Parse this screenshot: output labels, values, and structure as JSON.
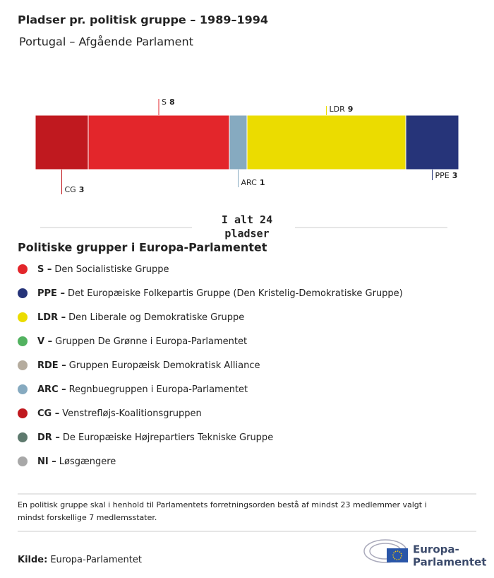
{
  "chart_data": {
    "type": "stacked-bar",
    "title": "Pladser pr. politisk gruppe – 1989–1994",
    "subtitle": "Portugal – Afgående Parlament",
    "series": [
      {
        "name": "CG",
        "color": "#c0191f",
        "values": [
          3
        ]
      },
      {
        "name": "S",
        "color": "#e3262b",
        "values": [
          8
        ]
      },
      {
        "name": "ARC",
        "color": "#86aac0",
        "values": [
          1
        ]
      },
      {
        "name": "LDR",
        "color": "#ebdc00",
        "values": [
          9
        ]
      },
      {
        "name": "PPE",
        "color": "#263479",
        "values": [
          3
        ]
      }
    ],
    "total_prefix": "I alt",
    "total": 24,
    "total_suffix": "pladser"
  },
  "legend": {
    "title": "Politiske grupper i Europa-Parlamentet",
    "items": [
      {
        "abbr": "S –",
        "name": "Den Socialistiske Gruppe",
        "color": "#e3262b"
      },
      {
        "abbr": "PPE –",
        "name": "Det Europæiske Folkepartis Gruppe (Den Kristelig-Demokratiske Gruppe)",
        "color": "#263479"
      },
      {
        "abbr": "LDR –",
        "name": "Den Liberale og Demokratiske Gruppe",
        "color": "#ebdc00"
      },
      {
        "abbr": "V –",
        "name": "Gruppen De Grønne i Europa-Parlamentet",
        "color": "#52b260"
      },
      {
        "abbr": "RDE –",
        "name": "Gruppen Europæisk Demokratisk Alliance",
        "color": "#b5ac9e"
      },
      {
        "abbr": "ARC –",
        "name": "Regnbuegruppen i Europa-Parlamentet",
        "color": "#86aac0"
      },
      {
        "abbr": "CG –",
        "name": "Venstrefløjs-Koalitionsgruppen",
        "color": "#c0191f"
      },
      {
        "abbr": "DR –",
        "name": "De Europæiske Højrepartiers Tekniske Gruppe",
        "color": "#5e7a6e"
      },
      {
        "abbr": "NI –",
        "name": "Løsgængere",
        "color": "#a8a8a8"
      }
    ]
  },
  "footnote": "En politisk gruppe skal i henhold til Parlamentets forretningsorden bestå af mindst 23 medlemmer valgt i mindst forskellige 7 medlemsstater.",
  "source": {
    "label": "Kilde:",
    "text": "Europa-Parlamentet"
  },
  "logo": {
    "line1": "Europa-",
    "line2": "Parlamentet"
  }
}
